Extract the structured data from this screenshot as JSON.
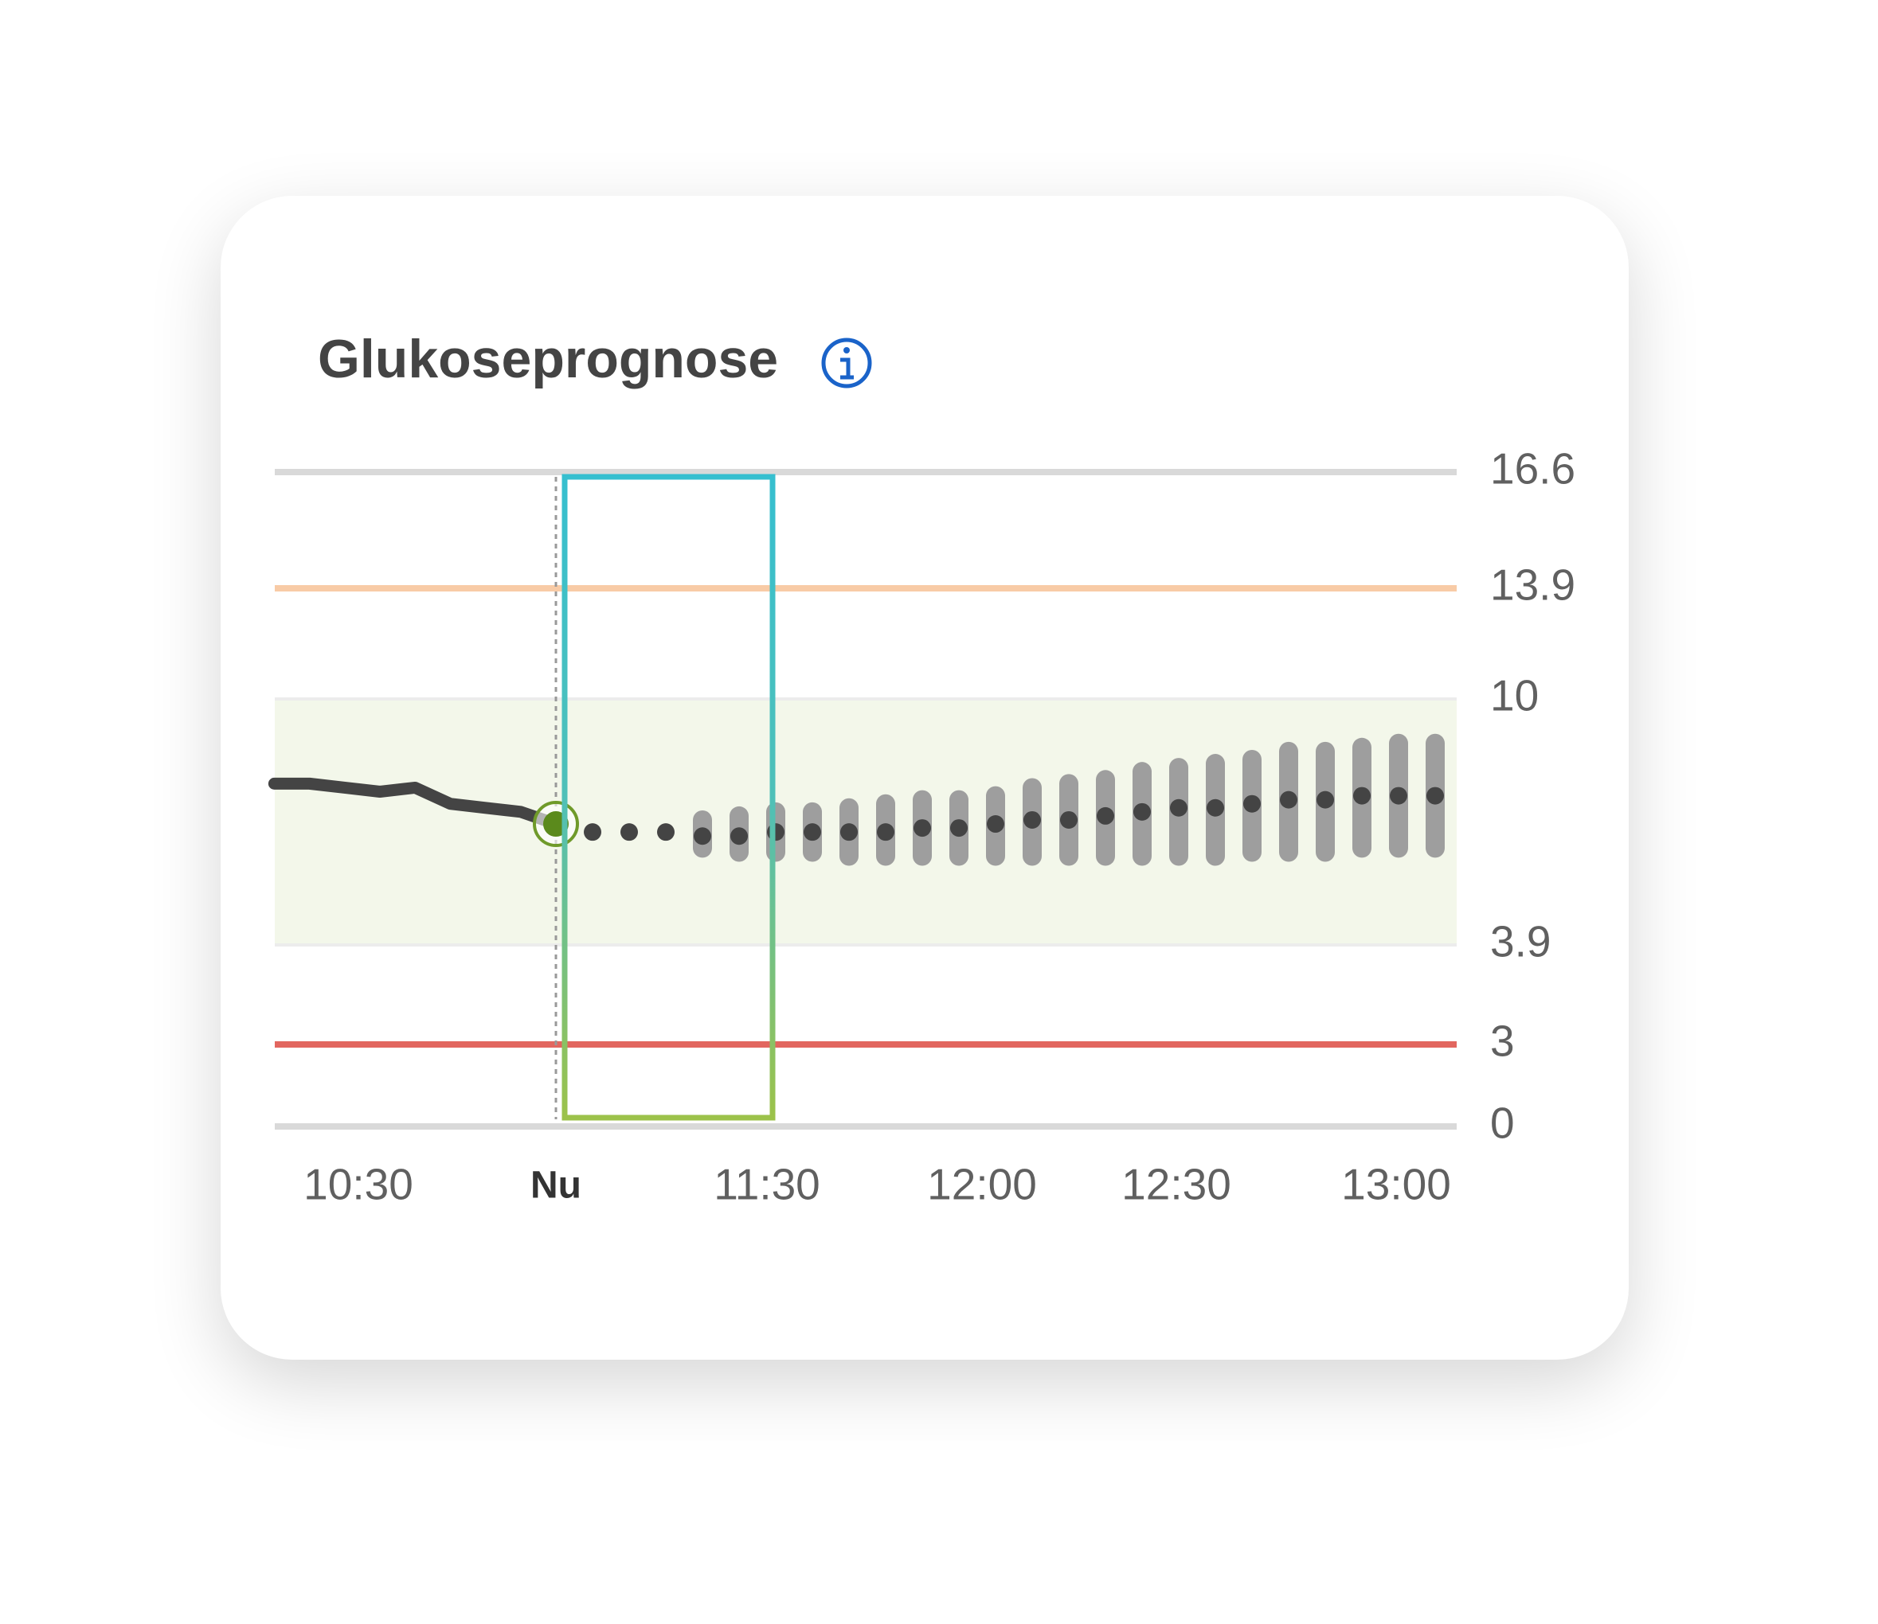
{
  "chart_data": {
    "type": "line",
    "title": "Glukoseprognose",
    "categories": [
      "10:30",
      "Nu",
      "11:30",
      "12:00",
      "12:30",
      "13:00"
    ],
    "ylim": [
      0,
      16.6
    ],
    "yticks": [
      0,
      3,
      3.9,
      10,
      13.9,
      16.6
    ],
    "target_range": {
      "low": 3.9,
      "high": 10,
      "color": "#f3f7ea"
    },
    "reference_lines": [
      {
        "value": 13.9,
        "color": "#f8cba6"
      },
      {
        "value": 3,
        "color": "#e2665f"
      }
    ],
    "history": {
      "color": "#444444",
      "values": [
        7.9,
        7.9,
        7.8,
        7.7,
        7.8,
        7.4,
        7.3,
        7.2,
        6.9
      ]
    },
    "forecast": {
      "color": "#444444",
      "band_color": "#9e9e9e",
      "values": [
        6.7,
        6.7,
        6.7,
        6.6,
        6.6,
        6.7,
        6.7,
        6.7,
        6.7,
        6.8,
        6.8,
        6.9,
        7.0,
        7.0,
        7.1,
        7.2,
        7.3,
        7.3,
        7.4,
        7.5,
        7.5,
        7.6,
        7.6,
        7.6
      ],
      "low": [
        null,
        null,
        null,
        6.3,
        6.2,
        6.2,
        6.2,
        6.1,
        6.1,
        6.1,
        6.1,
        6.1,
        6.1,
        6.1,
        6.1,
        6.1,
        6.1,
        6.1,
        6.2,
        6.2,
        6.2,
        6.3,
        6.3,
        6.3
      ],
      "high": [
        null,
        null,
        null,
        7.0,
        7.1,
        7.2,
        7.2,
        7.3,
        7.4,
        7.5,
        7.5,
        7.6,
        7.8,
        7.9,
        8.0,
        8.2,
        8.3,
        8.4,
        8.5,
        8.7,
        8.7,
        8.8,
        8.9,
        8.9
      ]
    }
  }
}
